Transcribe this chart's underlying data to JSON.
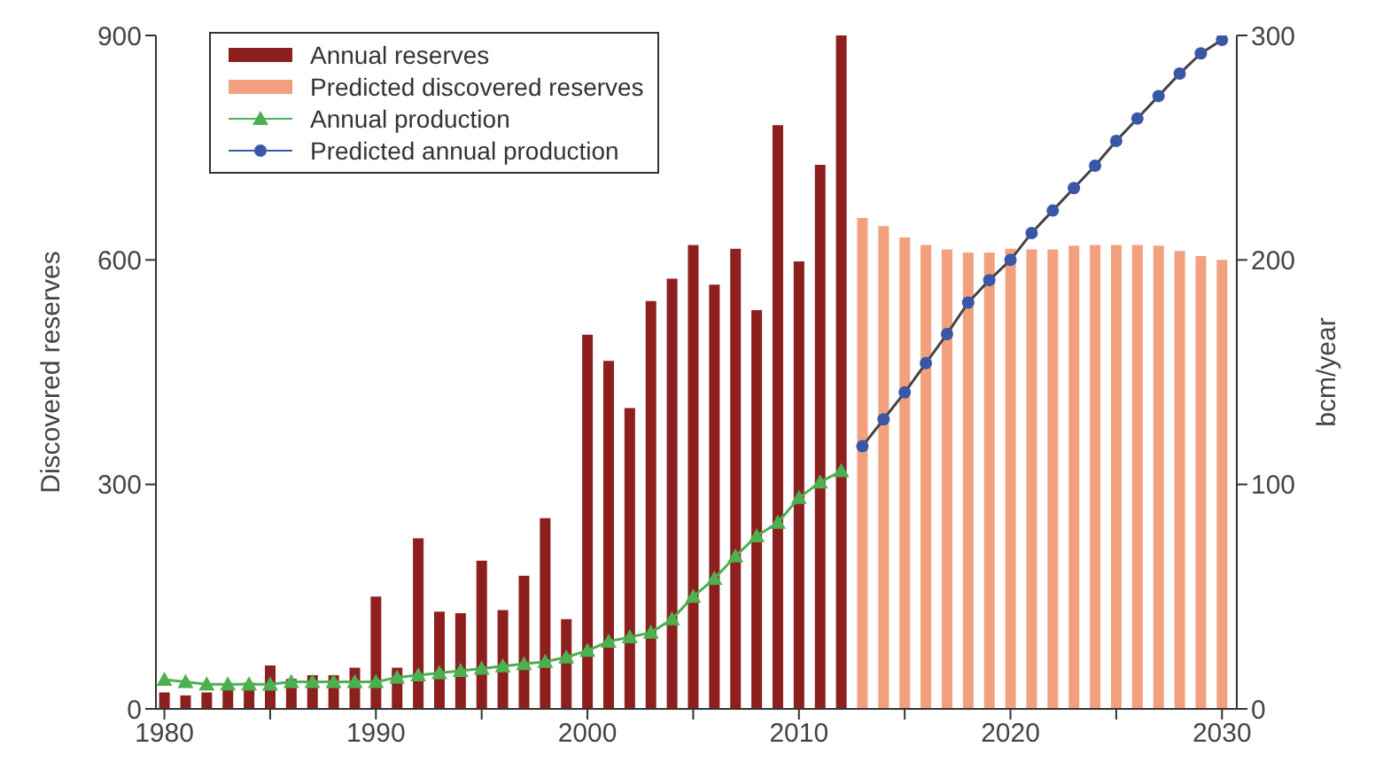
{
  "chart_data": {
    "type": "bar",
    "xlabel": null,
    "ylabel": "Discovered reserves",
    "y2label": "bcm/year",
    "xlim": [
      1979.6,
      2030.7
    ],
    "xticks": [
      1980,
      {
        "value": 1985,
        "label": null
      },
      1990,
      {
        "value": 1995,
        "label": null
      },
      2000,
      {
        "value": 2005,
        "label": null
      },
      2010,
      {
        "value": 2015,
        "label": null
      },
      2020,
      {
        "value": 2025,
        "label": null
      },
      2030
    ],
    "ylim": [
      0,
      900
    ],
    "yticks": [
      0,
      300,
      600,
      900
    ],
    "y2lim": [
      0,
      300
    ],
    "y2ticks": [
      0,
      100,
      200,
      300
    ],
    "grid": false,
    "legend": "top left",
    "series": [
      {
        "name": "Annual reserves",
        "color": "#8e1f1f",
        "x": [
          1980,
          1981,
          1982,
          1983,
          1984,
          1985,
          1986,
          1987,
          1988,
          1989,
          1990,
          1991,
          1992,
          1993,
          1994,
          1995,
          1996,
          1997,
          1998,
          1999,
          2000,
          2001,
          2002,
          2003,
          2004,
          2005,
          2006,
          2007,
          2008,
          2009,
          2010,
          2011,
          2012
        ],
        "values": [
          22,
          18,
          22,
          30,
          35,
          58,
          40,
          45,
          45,
          55,
          150,
          55,
          228,
          130,
          128,
          198,
          132,
          178,
          255,
          120,
          500,
          465,
          402,
          545,
          575,
          620,
          567,
          615,
          533,
          780,
          598,
          727,
          900
        ]
      },
      {
        "name": "Predicted discovered reserves",
        "color": "#f2a07e",
        "x": [
          2013,
          2014,
          2015,
          2016,
          2017,
          2018,
          2019,
          2020,
          2021,
          2022,
          2023,
          2024,
          2025,
          2026,
          2027,
          2028,
          2029,
          2030
        ],
        "values": [
          656,
          645,
          630,
          620,
          614,
          610,
          610,
          615,
          614,
          614,
          619,
          620,
          620,
          620,
          619,
          612,
          605,
          600
        ]
      },
      {
        "name": "Annual production",
        "type": "line",
        "axis": "y2",
        "marker": "triangle",
        "color": "#4cb050",
        "x": [
          1980,
          1981,
          1982,
          1983,
          1984,
          1985,
          1986,
          1987,
          1988,
          1989,
          1990,
          1991,
          1992,
          1993,
          1994,
          1995,
          1996,
          1997,
          1998,
          1999,
          2000,
          2001,
          2002,
          2003,
          2004,
          2005,
          2006,
          2007,
          2008,
          2009,
          2010,
          2011,
          2012
        ],
        "values": [
          13,
          12,
          11,
          11,
          11,
          11,
          12,
          12,
          12,
          12,
          12,
          14,
          15,
          16,
          17,
          18,
          19,
          20,
          21,
          23,
          26,
          30,
          32,
          34,
          40,
          50,
          58,
          68,
          77,
          83,
          94,
          101,
          106
        ]
      },
      {
        "name": "Predicted annual production",
        "type": "line",
        "axis": "y2",
        "marker": "circle",
        "color": "#3a56a6",
        "x": [
          2013,
          2014,
          2015,
          2016,
          2017,
          2018,
          2019,
          2020,
          2021,
          2022,
          2023,
          2024,
          2025,
          2026,
          2027,
          2028,
          2029,
          2030
        ],
        "values": [
          117,
          129,
          141,
          154,
          167,
          181,
          191,
          200,
          212,
          222,
          232,
          242,
          253,
          263,
          273,
          283,
          292,
          298
        ]
      }
    ]
  }
}
